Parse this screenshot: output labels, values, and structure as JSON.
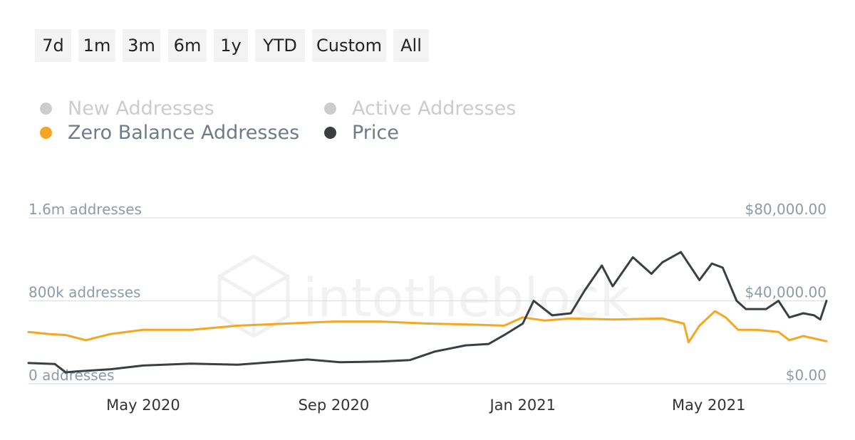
{
  "range_buttons": [
    "7d",
    "1m",
    "3m",
    "6m",
    "1y",
    "YTD",
    "Custom",
    "All"
  ],
  "watermark": "intotheblock",
  "legend": [
    {
      "label": "New Addresses",
      "color": "#cccccc",
      "enabled": false
    },
    {
      "label": "Active Addresses",
      "color": "#cccccc",
      "enabled": false
    },
    {
      "label": "Zero Balance Addresses",
      "color": "#f5a623",
      "enabled": true
    },
    {
      "label": "Price",
      "color": "#3a3f44",
      "enabled": true
    }
  ],
  "chart_data": {
    "type": "line",
    "x_range": [
      "2020-02-17",
      "2021-07-16"
    ],
    "x_ticks": [
      {
        "date": "2020-05-01",
        "label": "May 2020"
      },
      {
        "date": "2020-09-01",
        "label": "Sep 2020"
      },
      {
        "date": "2021-01-01",
        "label": "Jan 2021"
      },
      {
        "date": "2021-05-01",
        "label": "May 2021"
      }
    ],
    "y_left": {
      "ylim": [
        0,
        1600000
      ],
      "ticks": [
        {
          "value": 0,
          "label": "0 addresses"
        },
        {
          "value": 800000,
          "label": "800k addresses"
        },
        {
          "value": 1600000,
          "label": "1.6m addresses"
        }
      ]
    },
    "y_right": {
      "ylim": [
        0,
        80000
      ],
      "ticks": [
        {
          "value": 0,
          "label": "$0.00"
        },
        {
          "value": 40000,
          "label": "$40,000.00"
        },
        {
          "value": 80000,
          "label": "$80,000.00"
        }
      ]
    },
    "grid": true,
    "legend_position": "top-left",
    "series": [
      {
        "name": "Zero Balance Addresses",
        "axis": "left",
        "color": "#f5a623",
        "x": [
          "2020-02-17",
          "2020-03-01",
          "2020-03-12",
          "2020-03-25",
          "2020-04-10",
          "2020-05-01",
          "2020-06-01",
          "2020-07-01",
          "2020-08-01",
          "2020-09-01",
          "2020-10-01",
          "2020-11-01",
          "2020-12-01",
          "2020-12-20",
          "2021-01-01",
          "2021-01-15",
          "2021-02-01",
          "2021-03-01",
          "2021-04-01",
          "2021-04-15",
          "2021-04-18",
          "2021-04-25",
          "2021-05-05",
          "2021-05-12",
          "2021-05-20",
          "2021-06-01",
          "2021-06-15",
          "2021-06-22",
          "2021-07-01",
          "2021-07-16"
        ],
        "y": [
          500000,
          480000,
          470000,
          420000,
          480000,
          520000,
          520000,
          560000,
          580000,
          600000,
          600000,
          580000,
          570000,
          560000,
          640000,
          610000,
          630000,
          620000,
          630000,
          580000,
          400000,
          560000,
          700000,
          640000,
          520000,
          520000,
          500000,
          420000,
          460000,
          410000
        ]
      },
      {
        "name": "Price",
        "axis": "right",
        "color": "#3a3f44",
        "x": [
          "2020-02-17",
          "2020-03-05",
          "2020-03-12",
          "2020-03-20",
          "2020-04-10",
          "2020-05-01",
          "2020-06-01",
          "2020-07-01",
          "2020-07-25",
          "2020-08-15",
          "2020-09-05",
          "2020-10-01",
          "2020-10-20",
          "2020-11-05",
          "2020-11-25",
          "2020-12-10",
          "2020-12-20",
          "2021-01-01",
          "2021-01-08",
          "2021-01-20",
          "2021-02-01",
          "2021-02-10",
          "2021-02-21",
          "2021-02-28",
          "2021-03-13",
          "2021-03-25",
          "2021-04-01",
          "2021-04-13",
          "2021-04-25",
          "2021-05-03",
          "2021-05-10",
          "2021-05-19",
          "2021-05-25",
          "2021-06-07",
          "2021-06-15",
          "2021-06-22",
          "2021-07-01",
          "2021-07-08",
          "2021-07-12",
          "2021-07-16"
        ],
        "y": [
          10000,
          9500,
          5500,
          6000,
          7000,
          8800,
          9700,
          9200,
          10500,
          11700,
          10400,
          10700,
          11400,
          15500,
          18500,
          19200,
          23500,
          29000,
          40000,
          33000,
          34000,
          45000,
          57000,
          47000,
          61000,
          53000,
          58500,
          63500,
          50000,
          58000,
          56000,
          40000,
          36000,
          36000,
          40000,
          32000,
          34000,
          33000,
          31000,
          40000
        ]
      }
    ]
  }
}
